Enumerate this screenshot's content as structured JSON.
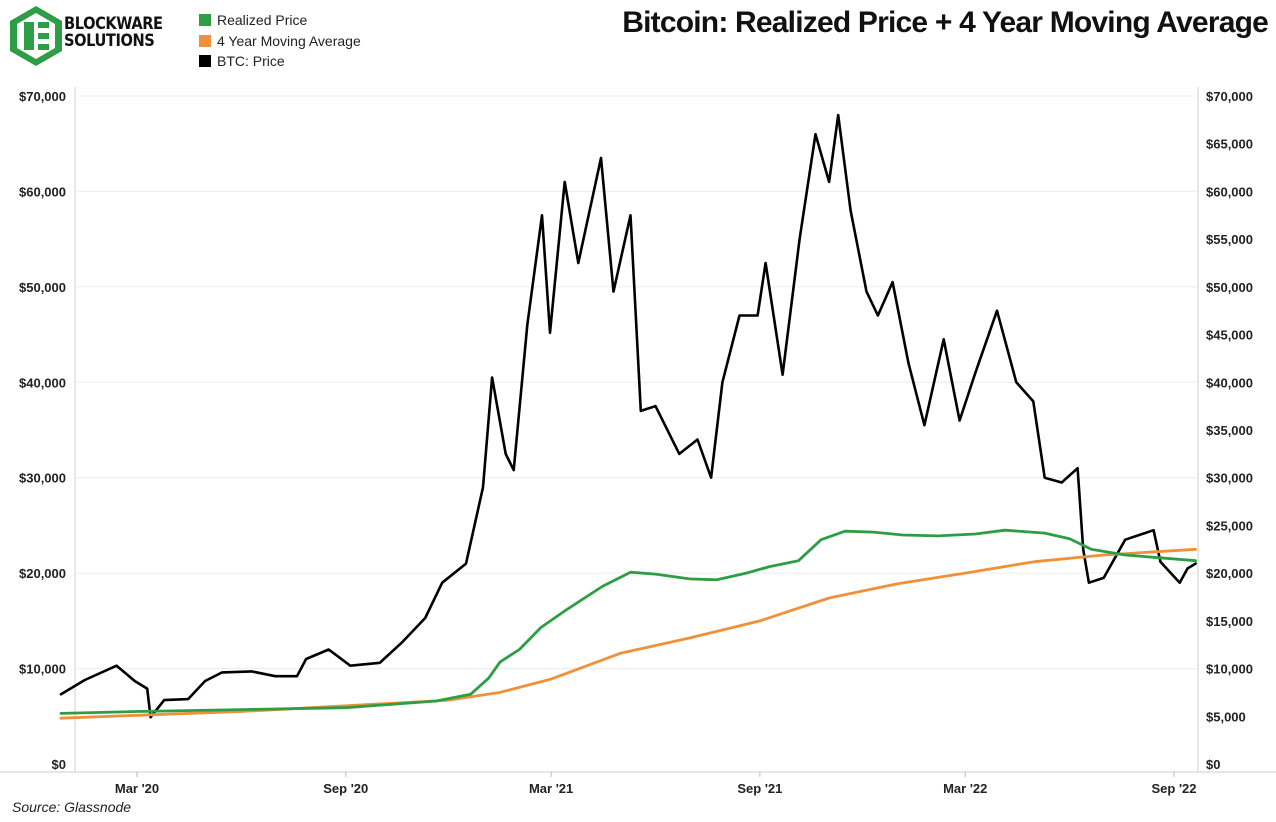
{
  "brand": {
    "line1": "BLOCKWARE",
    "line2": "SOLUTIONS",
    "logo_color": "#2d9e45"
  },
  "title": "Bitcoin: Realized Price + 4 Year Moving Average",
  "source": "Source: Glassnode",
  "legend": [
    {
      "label": "Realized Price",
      "color": "#2d9e45"
    },
    {
      "label": "4 Year Moving Average",
      "color": "#f0913a"
    },
    {
      "label": "BTC: Price",
      "color": "#000000"
    }
  ],
  "chart_data": {
    "type": "line",
    "title": "Bitcoin: Realized Price + 4 Year Moving Average",
    "x_axis_ticks": [
      "Mar '20",
      "Sep '20",
      "Mar '21",
      "Sep '21",
      "Mar '22",
      "Sep '22"
    ],
    "x_tick_dates": [
      "2020-03-01",
      "2020-09-01",
      "2021-03-01",
      "2021-09-01",
      "2022-03-01",
      "2022-09-01"
    ],
    "x_range": [
      "2019-12-25",
      "2022-09-20"
    ],
    "left_axis": {
      "ticks": [
        "$0",
        "$10,000",
        "$20,000",
        "$30,000",
        "$40,000",
        "$50,000",
        "$60,000",
        "$70,000"
      ],
      "tick_values": [
        0,
        10000,
        20000,
        30000,
        40000,
        50000,
        60000,
        70000
      ],
      "ylim": [
        0,
        70000
      ]
    },
    "right_axis": {
      "ticks": [
        "$0",
        "$5,000",
        "$10,000",
        "$15,000",
        "$20,000",
        "$25,000",
        "$30,000",
        "$35,000",
        "$40,000",
        "$45,000",
        "$50,000",
        "$55,000",
        "$60,000",
        "$65,000",
        "$70,000"
      ],
      "tick_values": [
        0,
        5000,
        10000,
        15000,
        20000,
        25000,
        30000,
        35000,
        40000,
        45000,
        50000,
        55000,
        60000,
        65000,
        70000
      ],
      "ylim": [
        0,
        70000
      ]
    },
    "grid": "horizontal",
    "series": [
      {
        "name": "BTC: Price",
        "color": "#000000",
        "points": [
          [
            "2019-12-25",
            7300
          ],
          [
            "2020-01-15",
            8800
          ],
          [
            "2020-02-12",
            10300
          ],
          [
            "2020-02-28",
            8700
          ],
          [
            "2020-03-10",
            7900
          ],
          [
            "2020-03-13",
            4900
          ],
          [
            "2020-03-25",
            6700
          ],
          [
            "2020-04-15",
            6800
          ],
          [
            "2020-04-30",
            8700
          ],
          [
            "2020-05-15",
            9600
          ],
          [
            "2020-06-10",
            9700
          ],
          [
            "2020-07-01",
            9200
          ],
          [
            "2020-07-20",
            9200
          ],
          [
            "2020-07-28",
            11000
          ],
          [
            "2020-08-17",
            12000
          ],
          [
            "2020-09-05",
            10300
          ],
          [
            "2020-10-01",
            10600
          ],
          [
            "2020-10-21",
            12800
          ],
          [
            "2020-11-10",
            15300
          ],
          [
            "2020-11-25",
            19000
          ],
          [
            "2020-12-16",
            21000
          ],
          [
            "2020-12-31",
            29000
          ],
          [
            "2021-01-08",
            40500
          ],
          [
            "2021-01-20",
            32500
          ],
          [
            "2021-01-27",
            30800
          ],
          [
            "2021-02-08",
            46000
          ],
          [
            "2021-02-21",
            57500
          ],
          [
            "2021-02-28",
            45200
          ],
          [
            "2021-03-13",
            61000
          ],
          [
            "2021-03-25",
            52500
          ],
          [
            "2021-04-14",
            63500
          ],
          [
            "2021-04-25",
            49500
          ],
          [
            "2021-05-10",
            57500
          ],
          [
            "2021-05-19",
            37000
          ],
          [
            "2021-06-01",
            37500
          ],
          [
            "2021-06-22",
            32500
          ],
          [
            "2021-07-08",
            34000
          ],
          [
            "2021-07-20",
            30000
          ],
          [
            "2021-07-30",
            40000
          ],
          [
            "2021-08-14",
            47000
          ],
          [
            "2021-08-30",
            47000
          ],
          [
            "2021-09-06",
            52500
          ],
          [
            "2021-09-21",
            40800
          ],
          [
            "2021-10-06",
            55000
          ],
          [
            "2021-10-20",
            66000
          ],
          [
            "2021-11-01",
            61000
          ],
          [
            "2021-11-09",
            68000
          ],
          [
            "2021-11-20",
            58000
          ],
          [
            "2021-12-04",
            49500
          ],
          [
            "2021-12-14",
            47000
          ],
          [
            "2021-12-27",
            50500
          ],
          [
            "2022-01-10",
            42000
          ],
          [
            "2022-01-24",
            35500
          ],
          [
            "2022-02-10",
            44500
          ],
          [
            "2022-02-24",
            36000
          ],
          [
            "2022-03-10",
            41000
          ],
          [
            "2022-03-29",
            47500
          ],
          [
            "2022-04-15",
            40000
          ],
          [
            "2022-04-30",
            38000
          ],
          [
            "2022-05-10",
            30000
          ],
          [
            "2022-05-25",
            29500
          ],
          [
            "2022-06-08",
            31000
          ],
          [
            "2022-06-13",
            22500
          ],
          [
            "2022-06-18",
            19000
          ],
          [
            "2022-07-01",
            19500
          ],
          [
            "2022-07-20",
            23500
          ],
          [
            "2022-08-14",
            24500
          ],
          [
            "2022-08-20",
            21200
          ],
          [
            "2022-09-06",
            19000
          ],
          [
            "2022-09-13",
            20500
          ],
          [
            "2022-09-20",
            21000
          ]
        ]
      },
      {
        "name": "Realized Price",
        "color": "#2d9e45",
        "points": [
          [
            "2019-12-25",
            5300
          ],
          [
            "2020-03-01",
            5500
          ],
          [
            "2020-06-01",
            5700
          ],
          [
            "2020-09-01",
            5900
          ],
          [
            "2020-11-20",
            6600
          ],
          [
            "2020-12-20",
            7300
          ],
          [
            "2021-01-05",
            9000
          ],
          [
            "2021-01-15",
            10700
          ],
          [
            "2021-02-01",
            12000
          ],
          [
            "2021-02-20",
            14300
          ],
          [
            "2021-03-15",
            16200
          ],
          [
            "2021-04-15",
            18600
          ],
          [
            "2021-05-10",
            20100
          ],
          [
            "2021-06-01",
            19900
          ],
          [
            "2021-07-01",
            19400
          ],
          [
            "2021-07-25",
            19300
          ],
          [
            "2021-08-20",
            20000
          ],
          [
            "2021-09-10",
            20700
          ],
          [
            "2021-10-05",
            21300
          ],
          [
            "2021-10-25",
            23500
          ],
          [
            "2021-11-15",
            24400
          ],
          [
            "2021-12-10",
            24300
          ],
          [
            "2022-01-05",
            24000
          ],
          [
            "2022-02-05",
            23900
          ],
          [
            "2022-03-10",
            24100
          ],
          [
            "2022-04-05",
            24500
          ],
          [
            "2022-05-10",
            24200
          ],
          [
            "2022-06-01",
            23600
          ],
          [
            "2022-06-20",
            22500
          ],
          [
            "2022-07-20",
            21900
          ],
          [
            "2022-09-20",
            21300
          ]
        ]
      },
      {
        "name": "4 Year Moving Average",
        "color": "#f0913a",
        "points": [
          [
            "2019-12-25",
            4800
          ],
          [
            "2020-03-01",
            5100
          ],
          [
            "2020-06-01",
            5500
          ],
          [
            "2020-09-01",
            6100
          ],
          [
            "2020-12-01",
            6700
          ],
          [
            "2021-01-15",
            7500
          ],
          [
            "2021-03-01",
            8900
          ],
          [
            "2021-05-01",
            11600
          ],
          [
            "2021-07-01",
            13200
          ],
          [
            "2021-09-01",
            15000
          ],
          [
            "2021-11-01",
            17400
          ],
          [
            "2022-01-01",
            18900
          ],
          [
            "2022-03-01",
            20000
          ],
          [
            "2022-05-01",
            21200
          ],
          [
            "2022-07-01",
            21900
          ],
          [
            "2022-09-20",
            22500
          ]
        ]
      }
    ]
  }
}
